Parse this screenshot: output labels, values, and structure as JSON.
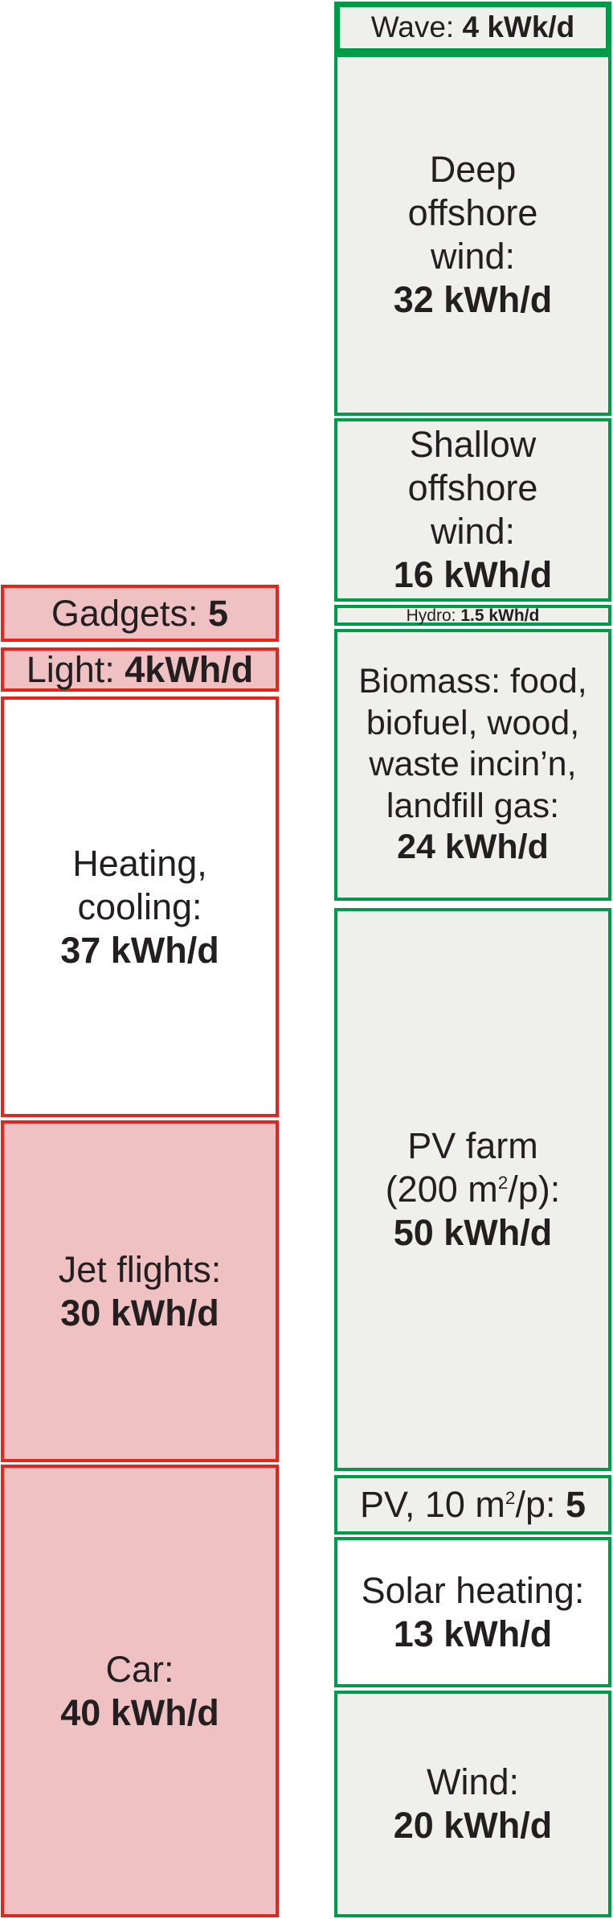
{
  "consumption": {
    "gadgets": {
      "label": "Gadgets: ",
      "value": "5"
    },
    "light": {
      "label": "Light: ",
      "value": "4kWh/d"
    },
    "heating": {
      "line1": "Heating,",
      "line2": "cooling:",
      "value": "37 kWh/d"
    },
    "jet": {
      "line1": "Jet flights:",
      "value": "30 kWh/d"
    },
    "car": {
      "line1": "Car:",
      "value": "40 kWh/d"
    }
  },
  "production": {
    "wave": {
      "label": "Wave: ",
      "value": "4 kWk/d"
    },
    "deep_wind": {
      "line1": "Deep",
      "line2": "offshore",
      "line3": "wind:",
      "value": "32 kWh/d"
    },
    "shallow_wind": {
      "line1": "Shallow",
      "line2": "offshore",
      "line3": "wind:",
      "value": "16 kWh/d"
    },
    "hydro": {
      "label": "Hydro: ",
      "value": "1.5 kWh/d"
    },
    "biomass": {
      "line1": "Biomass: food,",
      "line2": "biofuel, wood,",
      "line3": "waste incin’n,",
      "line4": "landfill gas:",
      "value": "24 kWh/d"
    },
    "pv_farm": {
      "line1": "PV farm",
      "line2a": "(200 m",
      "sup": "2",
      "line2b": "/p):",
      "value": "50 kWh/d"
    },
    "pv_roof": {
      "label_a": "PV, 10 m",
      "sup": "2",
      "label_b": "/p: ",
      "value": "5"
    },
    "solar_heating": {
      "line1": "Solar heating:",
      "value": "13 kWh/d"
    },
    "wind": {
      "line1": "Wind:",
      "value": "20 kWh/d"
    }
  }
}
